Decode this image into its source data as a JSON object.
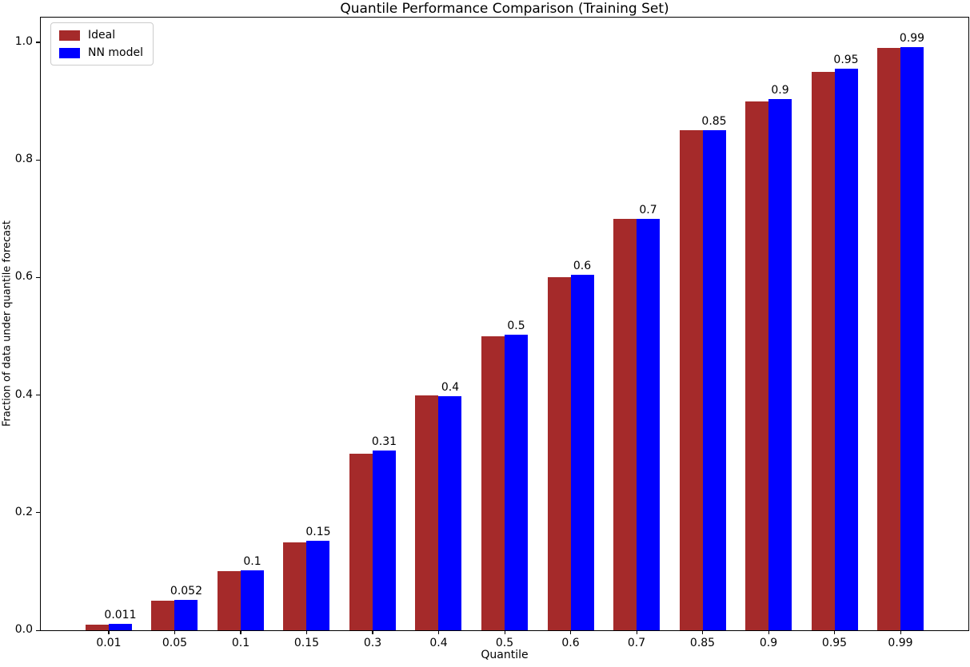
{
  "chart_data": {
    "type": "bar",
    "title": "Quantile Performance Comparison (Training Set)",
    "xlabel": "Quantile",
    "ylabel": "Fraction of data under quantile forecast",
    "categories": [
      "0.01",
      "0.05",
      "0.1",
      "0.15",
      "0.3",
      "0.4",
      "0.5",
      "0.6",
      "0.7",
      "0.85",
      "0.9",
      "0.95",
      "0.99"
    ],
    "series": [
      {
        "name": "Ideal",
        "color": "#a52a2a",
        "values": [
          0.01,
          0.05,
          0.1,
          0.15,
          0.3,
          0.4,
          0.5,
          0.6,
          0.7,
          0.85,
          0.9,
          0.95,
          0.99
        ]
      },
      {
        "name": "NN model",
        "color": "#0000ff",
        "values": [
          0.011,
          0.052,
          0.102,
          0.152,
          0.306,
          0.398,
          0.503,
          0.604,
          0.7,
          0.851,
          0.903,
          0.955,
          0.992
        ]
      }
    ],
    "bar_labels": [
      "0.011",
      "0.052",
      "0.1",
      "0.15",
      "0.31",
      "0.4",
      "0.5",
      "0.6",
      "0.7",
      "0.85",
      "0.9",
      "0.95",
      "0.99"
    ],
    "yticks": [
      "0.0",
      "0.2",
      "0.4",
      "0.6",
      "0.8",
      "1.0"
    ],
    "ylim": [
      0,
      1.042
    ],
    "grid": false,
    "legend_position": "upper left",
    "spine_color": "#000000"
  }
}
